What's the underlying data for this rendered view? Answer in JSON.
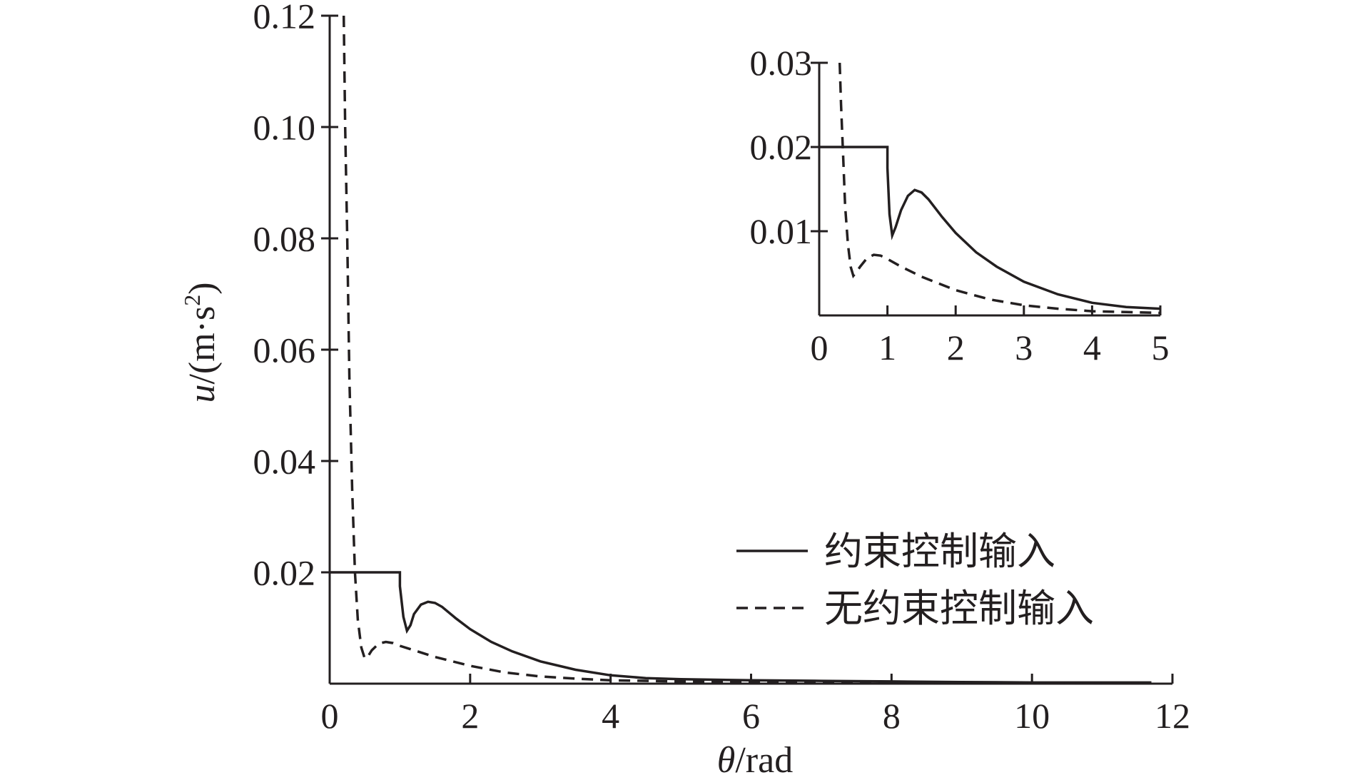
{
  "chart_data": [
    {
      "type": "line",
      "xlabel_symbol": "θ",
      "xlabel_unit": "/rad",
      "ylabel_symbol": "u",
      "ylabel_unit": "/(m·s",
      "ylabel_exp": "2",
      "ylabel_close": ")",
      "xlim": [
        0,
        12
      ],
      "ylim": [
        0,
        0.12
      ],
      "xticks": [
        0,
        2,
        4,
        6,
        8,
        10,
        12
      ],
      "xtick_labels": [
        "0",
        "2",
        "4",
        "6",
        "8",
        "10",
        "12"
      ],
      "yticks": [
        0.02,
        0.04,
        0.06,
        0.08,
        0.1,
        0.12
      ],
      "ytick_labels": [
        "0.02",
        "0.04",
        "0.06",
        "0.08",
        "0.10",
        "0.12"
      ],
      "legend_position": "lower-right",
      "series": [
        {
          "name": "约束控制输入",
          "style": "solid",
          "x": [
            0,
            1.0,
            1.0,
            1.05,
            1.1,
            1.15,
            1.2,
            1.3,
            1.4,
            1.5,
            1.6,
            1.8,
            2.0,
            2.3,
            2.6,
            3.0,
            3.5,
            4.0,
            4.5,
            5.0,
            6.0,
            7.0,
            8.0,
            9.0,
            10.0,
            11.0,
            11.7
          ],
          "y": [
            0.02,
            0.02,
            0.0175,
            0.012,
            0.0095,
            0.0105,
            0.0125,
            0.0142,
            0.0147,
            0.0145,
            0.0138,
            0.0117,
            0.0098,
            0.0075,
            0.0058,
            0.004,
            0.0025,
            0.0015,
            0.001,
            0.0008,
            0.0006,
            0.0005,
            0.0004,
            0.0003,
            0.0002,
            0.0002,
            0.0002
          ]
        },
        {
          "name": "无约束控制输入",
          "style": "dashed",
          "x": [
            0.2,
            0.22,
            0.25,
            0.28,
            0.32,
            0.36,
            0.4,
            0.45,
            0.5,
            0.55,
            0.6,
            0.7,
            0.8,
            0.9,
            1.0,
            1.2,
            1.5,
            2.0,
            2.5,
            3.0,
            3.5,
            4.0,
            5.0,
            6.0,
            8.0,
            10.0,
            11.7
          ],
          "y": [
            0.12,
            0.1,
            0.08,
            0.055,
            0.035,
            0.02,
            0.0115,
            0.0065,
            0.0045,
            0.005,
            0.006,
            0.0072,
            0.0075,
            0.0073,
            0.0068,
            0.006,
            0.0048,
            0.0032,
            0.002,
            0.0013,
            0.0009,
            0.0006,
            0.0004,
            0.0003,
            0.0002,
            0.0001,
            0.0001
          ]
        }
      ]
    },
    {
      "type": "line",
      "role": "inset",
      "xlim": [
        0,
        5
      ],
      "ylim": [
        0,
        0.03
      ],
      "xticks": [
        0,
        1,
        2,
        3,
        4,
        5
      ],
      "xtick_labels": [
        "0",
        "1",
        "2",
        "3",
        "4",
        "5"
      ],
      "yticks": [
        0.01,
        0.02,
        0.03
      ],
      "ytick_labels": [
        "0.01",
        "0.02",
        "0.03"
      ],
      "series": [
        {
          "name": "约束控制输入",
          "style": "solid",
          "x": [
            0,
            1.0,
            1.0,
            1.03,
            1.07,
            1.12,
            1.2,
            1.3,
            1.4,
            1.5,
            1.6,
            1.8,
            2.0,
            2.3,
            2.6,
            3.0,
            3.5,
            4.0,
            4.5,
            5.0
          ],
          "y": [
            0.02,
            0.02,
            0.0175,
            0.012,
            0.0095,
            0.0105,
            0.0125,
            0.0142,
            0.0149,
            0.0146,
            0.0138,
            0.0117,
            0.0098,
            0.0075,
            0.0058,
            0.004,
            0.0025,
            0.0015,
            0.001,
            0.0008
          ]
        },
        {
          "name": "无约束控制输入",
          "style": "dashed",
          "x": [
            0.3,
            0.32,
            0.35,
            0.38,
            0.42,
            0.46,
            0.5,
            0.55,
            0.6,
            0.7,
            0.8,
            0.9,
            1.0,
            1.2,
            1.5,
            2.0,
            2.5,
            3.0,
            3.5,
            4.0,
            4.5,
            5.0
          ],
          "y": [
            0.03,
            0.025,
            0.019,
            0.013,
            0.0085,
            0.0058,
            0.0047,
            0.0052,
            0.0058,
            0.0068,
            0.0072,
            0.0071,
            0.0067,
            0.0058,
            0.0046,
            0.003,
            0.0019,
            0.0012,
            0.0008,
            0.0005,
            0.0004,
            0.0003
          ]
        }
      ]
    }
  ]
}
